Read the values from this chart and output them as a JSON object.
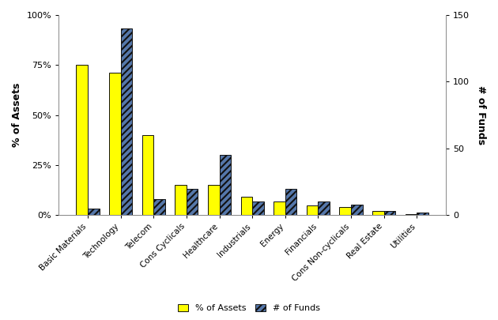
{
  "categories": [
    "Basic Materials",
    "Technology",
    "Telecom",
    "Cons Cyclicals",
    "Healthcare",
    "Industrials",
    "Energy",
    "Financials",
    "Cons Non-cyclicals",
    "Real Estate",
    "Utilities"
  ],
  "pct_assets": [
    0.75,
    0.71,
    0.4,
    0.15,
    0.15,
    0.09,
    0.07,
    0.05,
    0.04,
    0.02,
    0.005
  ],
  "num_funds": [
    5,
    140,
    12,
    20,
    45,
    10,
    20,
    10,
    8,
    3,
    2
  ],
  "bar_color_assets": "#ffff00",
  "bar_color_funds_face": "#5577aa",
  "bar_color_funds_hatch": "////",
  "bar_color_funds_hatch_color": "#111111",
  "bar_edge_color": "#111111",
  "ylabel_left": "% of Assets",
  "ylabel_right": "# of Funds",
  "ylim_left": [
    0,
    1.0
  ],
  "ylim_right": [
    0,
    150
  ],
  "yticks_left": [
    0,
    0.25,
    0.5,
    0.75,
    1.0
  ],
  "ytick_labels_left": [
    "0%",
    "25%",
    "50%",
    "75%",
    "100%"
  ],
  "yticks_right": [
    0,
    50,
    100,
    150
  ],
  "legend_label_assets": "% of Assets",
  "legend_label_funds": "# of Funds",
  "background_color": "#ffffff",
  "bar_width": 0.35,
  "figsize": [
    6.3,
    4.05
  ],
  "dpi": 100
}
